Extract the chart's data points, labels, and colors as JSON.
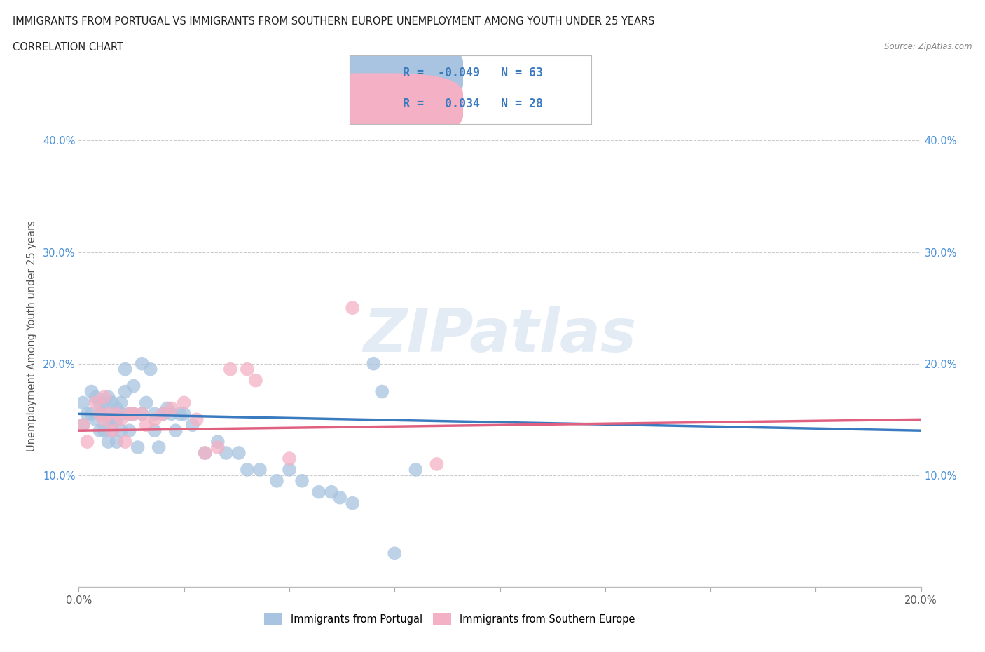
{
  "title_line1": "IMMIGRANTS FROM PORTUGAL VS IMMIGRANTS FROM SOUTHERN EUROPE UNEMPLOYMENT AMONG YOUTH UNDER 25 YEARS",
  "title_line2": "CORRELATION CHART",
  "source": "Source: ZipAtlas.com",
  "ylabel": "Unemployment Among Youth under 25 years",
  "xlim": [
    0.0,
    0.2
  ],
  "ylim": [
    0.0,
    0.45
  ],
  "blue_color": "#a8c4e0",
  "pink_color": "#f4b0c4",
  "blue_line_color": "#3a7abf",
  "pink_line_color": "#e06080",
  "r_blue": -0.049,
  "n_blue": 63,
  "r_pink": 0.034,
  "n_pink": 28,
  "legend_label_blue": "Immigrants from Portugal",
  "legend_label_pink": "Immigrants from Southern Europe",
  "watermark": "ZIPatlas",
  "blue_scatter_x": [
    0.001,
    0.001,
    0.002,
    0.003,
    0.003,
    0.004,
    0.004,
    0.005,
    0.005,
    0.005,
    0.006,
    0.006,
    0.006,
    0.007,
    0.007,
    0.007,
    0.008,
    0.008,
    0.008,
    0.009,
    0.009,
    0.009,
    0.01,
    0.01,
    0.01,
    0.011,
    0.011,
    0.012,
    0.012,
    0.013,
    0.013,
    0.014,
    0.015,
    0.015,
    0.016,
    0.017,
    0.018,
    0.018,
    0.019,
    0.02,
    0.021,
    0.022,
    0.023,
    0.024,
    0.025,
    0.027,
    0.03,
    0.033,
    0.035,
    0.038,
    0.04,
    0.043,
    0.047,
    0.05,
    0.053,
    0.057,
    0.06,
    0.062,
    0.065,
    0.07,
    0.072,
    0.075,
    0.08
  ],
  "blue_scatter_y": [
    0.165,
    0.145,
    0.155,
    0.175,
    0.155,
    0.17,
    0.15,
    0.165,
    0.155,
    0.14,
    0.165,
    0.155,
    0.14,
    0.17,
    0.15,
    0.13,
    0.165,
    0.15,
    0.14,
    0.16,
    0.15,
    0.13,
    0.165,
    0.155,
    0.14,
    0.195,
    0.175,
    0.155,
    0.14,
    0.18,
    0.155,
    0.125,
    0.2,
    0.155,
    0.165,
    0.195,
    0.155,
    0.14,
    0.125,
    0.155,
    0.16,
    0.155,
    0.14,
    0.155,
    0.155,
    0.145,
    0.12,
    0.13,
    0.12,
    0.12,
    0.105,
    0.105,
    0.095,
    0.105,
    0.095,
    0.085,
    0.085,
    0.08,
    0.075,
    0.2,
    0.175,
    0.03,
    0.105
  ],
  "pink_scatter_x": [
    0.001,
    0.002,
    0.004,
    0.005,
    0.006,
    0.006,
    0.007,
    0.008,
    0.009,
    0.01,
    0.011,
    0.012,
    0.013,
    0.015,
    0.016,
    0.018,
    0.02,
    0.022,
    0.025,
    0.028,
    0.03,
    0.033,
    0.036,
    0.04,
    0.042,
    0.05,
    0.065,
    0.085
  ],
  "pink_scatter_y": [
    0.145,
    0.13,
    0.165,
    0.155,
    0.17,
    0.15,
    0.155,
    0.14,
    0.155,
    0.15,
    0.13,
    0.155,
    0.155,
    0.155,
    0.145,
    0.15,
    0.155,
    0.16,
    0.165,
    0.15,
    0.12,
    0.125,
    0.195,
    0.195,
    0.185,
    0.115,
    0.25,
    0.11
  ],
  "blue_trend_x": [
    0.0,
    0.2
  ],
  "blue_trend_y": [
    0.155,
    0.14
  ],
  "pink_trend_x": [
    0.0,
    0.2
  ],
  "pink_trend_y": [
    0.14,
    0.15
  ]
}
